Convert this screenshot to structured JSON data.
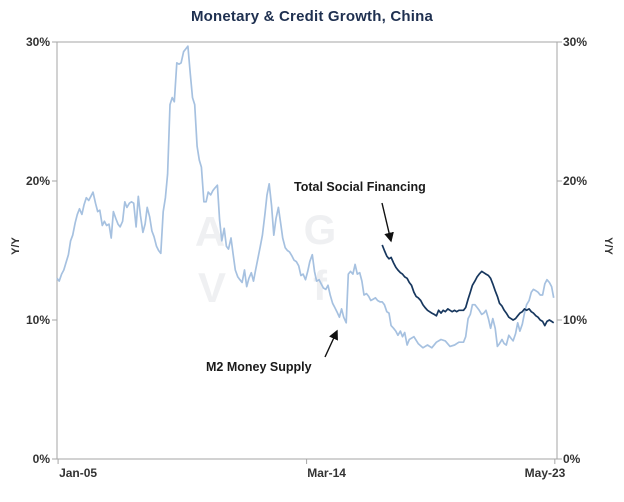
{
  "chart_data": {
    "type": "line",
    "title": "Monetary & Credit Growth, China",
    "ylabel_left": "Y/Y",
    "ylabel_right": "Y/Y",
    "axes": {
      "x_range": [
        2005.0,
        2023.45
      ],
      "y_range": [
        0,
        30
      ],
      "x_ticks": [
        {
          "label": "Jan-05",
          "x": 2005.04
        },
        {
          "label": "Mar-14",
          "x": 2014.21
        },
        {
          "label": "May-23",
          "x": 2023.37
        }
      ],
      "y_ticks": [
        {
          "label": "0%",
          "value": 0
        },
        {
          "label": "10%",
          "value": 10
        },
        {
          "label": "20%",
          "value": 20
        },
        {
          "label": "30%",
          "value": 30
        }
      ],
      "grid": false,
      "legend": "none"
    },
    "series": [
      {
        "name": "M2 Money Supply",
        "color": "#a6c1e0",
        "points": [
          [
            2005.0,
            13.0
          ],
          [
            2005.08,
            12.8
          ],
          [
            2005.17,
            13.3
          ],
          [
            2005.25,
            13.6
          ],
          [
            2005.33,
            14.1
          ],
          [
            2005.42,
            14.7
          ],
          [
            2005.5,
            15.7
          ],
          [
            2005.58,
            16.1
          ],
          [
            2005.67,
            17.0
          ],
          [
            2005.75,
            17.6
          ],
          [
            2005.83,
            18.0
          ],
          [
            2005.92,
            17.6
          ],
          [
            2006.0,
            18.3
          ],
          [
            2006.08,
            18.8
          ],
          [
            2006.17,
            18.6
          ],
          [
            2006.25,
            18.9
          ],
          [
            2006.33,
            19.2
          ],
          [
            2006.42,
            18.4
          ],
          [
            2006.5,
            17.8
          ],
          [
            2006.58,
            17.9
          ],
          [
            2006.67,
            16.8
          ],
          [
            2006.75,
            17.1
          ],
          [
            2006.83,
            16.8
          ],
          [
            2006.92,
            16.9
          ],
          [
            2007.0,
            15.9
          ],
          [
            2007.08,
            17.8
          ],
          [
            2007.17,
            17.3
          ],
          [
            2007.25,
            16.9
          ],
          [
            2007.33,
            16.7
          ],
          [
            2007.42,
            17.1
          ],
          [
            2007.5,
            18.5
          ],
          [
            2007.58,
            18.1
          ],
          [
            2007.67,
            18.4
          ],
          [
            2007.75,
            18.5
          ],
          [
            2007.83,
            18.4
          ],
          [
            2007.92,
            16.7
          ],
          [
            2008.0,
            18.9
          ],
          [
            2008.08,
            17.5
          ],
          [
            2008.17,
            16.3
          ],
          [
            2008.25,
            16.9
          ],
          [
            2008.33,
            18.1
          ],
          [
            2008.42,
            17.4
          ],
          [
            2008.5,
            16.4
          ],
          [
            2008.58,
            16.0
          ],
          [
            2008.67,
            15.3
          ],
          [
            2008.75,
            15.0
          ],
          [
            2008.83,
            14.8
          ],
          [
            2008.92,
            17.8
          ],
          [
            2009.0,
            18.8
          ],
          [
            2009.08,
            20.5
          ],
          [
            2009.17,
            25.5
          ],
          [
            2009.25,
            26.0
          ],
          [
            2009.33,
            25.7
          ],
          [
            2009.42,
            28.5
          ],
          [
            2009.5,
            28.4
          ],
          [
            2009.58,
            28.5
          ],
          [
            2009.67,
            29.3
          ],
          [
            2009.75,
            29.5
          ],
          [
            2009.83,
            29.7
          ],
          [
            2009.92,
            27.7
          ],
          [
            2010.0,
            26.0
          ],
          [
            2010.08,
            25.5
          ],
          [
            2010.17,
            22.5
          ],
          [
            2010.25,
            21.5
          ],
          [
            2010.33,
            21.0
          ],
          [
            2010.42,
            18.5
          ],
          [
            2010.5,
            18.5
          ],
          [
            2010.58,
            19.2
          ],
          [
            2010.67,
            19.0
          ],
          [
            2010.75,
            19.3
          ],
          [
            2010.83,
            19.5
          ],
          [
            2010.92,
            19.7
          ],
          [
            2011.0,
            17.2
          ],
          [
            2011.08,
            15.7
          ],
          [
            2011.17,
            16.6
          ],
          [
            2011.25,
            15.3
          ],
          [
            2011.33,
            15.1
          ],
          [
            2011.42,
            15.9
          ],
          [
            2011.5,
            14.7
          ],
          [
            2011.58,
            13.6
          ],
          [
            2011.67,
            13.1
          ],
          [
            2011.75,
            12.9
          ],
          [
            2011.83,
            12.7
          ],
          [
            2011.92,
            13.6
          ],
          [
            2012.0,
            12.4
          ],
          [
            2012.08,
            13.0
          ],
          [
            2012.17,
            13.4
          ],
          [
            2012.25,
            12.8
          ],
          [
            2012.33,
            13.6
          ],
          [
            2012.42,
            14.5
          ],
          [
            2012.5,
            15.3
          ],
          [
            2012.58,
            16.1
          ],
          [
            2012.67,
            17.6
          ],
          [
            2012.75,
            19.0
          ],
          [
            2012.83,
            19.8
          ],
          [
            2012.92,
            18.2
          ],
          [
            2013.0,
            16.1
          ],
          [
            2013.08,
            17.3
          ],
          [
            2013.17,
            18.1
          ],
          [
            2013.25,
            17.0
          ],
          [
            2013.33,
            15.9
          ],
          [
            2013.42,
            15.2
          ],
          [
            2013.5,
            15.0
          ],
          [
            2013.58,
            14.9
          ],
          [
            2013.67,
            14.6
          ],
          [
            2013.75,
            14.3
          ],
          [
            2013.83,
            14.2
          ],
          [
            2013.92,
            13.9
          ],
          [
            2014.0,
            13.2
          ],
          [
            2014.08,
            13.3
          ],
          [
            2014.17,
            12.9
          ],
          [
            2014.25,
            13.5
          ],
          [
            2014.33,
            14.2
          ],
          [
            2014.42,
            14.7
          ],
          [
            2014.5,
            13.5
          ],
          [
            2014.58,
            12.8
          ],
          [
            2014.67,
            12.9
          ],
          [
            2014.75,
            12.6
          ],
          [
            2014.83,
            12.3
          ],
          [
            2014.92,
            12.2
          ],
          [
            2015.0,
            12.5
          ],
          [
            2015.08,
            11.8
          ],
          [
            2015.17,
            11.2
          ],
          [
            2015.25,
            10.9
          ],
          [
            2015.33,
            10.6
          ],
          [
            2015.42,
            10.2
          ],
          [
            2015.5,
            10.8
          ],
          [
            2015.58,
            10.2
          ],
          [
            2015.67,
            9.8
          ],
          [
            2015.75,
            13.3
          ],
          [
            2015.83,
            13.5
          ],
          [
            2015.92,
            13.3
          ],
          [
            2016.0,
            14.0
          ],
          [
            2016.08,
            13.3
          ],
          [
            2016.17,
            13.4
          ],
          [
            2016.25,
            12.8
          ],
          [
            2016.33,
            11.8
          ],
          [
            2016.42,
            11.9
          ],
          [
            2016.5,
            11.7
          ],
          [
            2016.58,
            11.4
          ],
          [
            2016.67,
            11.5
          ],
          [
            2016.75,
            11.6
          ],
          [
            2016.83,
            11.4
          ],
          [
            2016.92,
            11.3
          ],
          [
            2017.0,
            11.3
          ],
          [
            2017.08,
            11.1
          ],
          [
            2017.17,
            10.6
          ],
          [
            2017.25,
            10.5
          ],
          [
            2017.33,
            9.6
          ],
          [
            2017.42,
            9.4
          ],
          [
            2017.5,
            9.2
          ],
          [
            2017.58,
            8.9
          ],
          [
            2017.67,
            9.2
          ],
          [
            2017.75,
            8.8
          ],
          [
            2017.83,
            9.1
          ],
          [
            2017.92,
            8.2
          ],
          [
            2018.0,
            8.6
          ],
          [
            2018.17,
            8.8
          ],
          [
            2018.33,
            8.3
          ],
          [
            2018.5,
            8.0
          ],
          [
            2018.67,
            8.2
          ],
          [
            2018.83,
            8.0
          ],
          [
            2019.0,
            8.4
          ],
          [
            2019.17,
            8.6
          ],
          [
            2019.33,
            8.5
          ],
          [
            2019.5,
            8.1
          ],
          [
            2019.67,
            8.2
          ],
          [
            2019.83,
            8.4
          ],
          [
            2020.0,
            8.4
          ],
          [
            2020.08,
            8.8
          ],
          [
            2020.17,
            10.1
          ],
          [
            2020.25,
            10.4
          ],
          [
            2020.33,
            11.1
          ],
          [
            2020.42,
            11.1
          ],
          [
            2020.5,
            10.9
          ],
          [
            2020.58,
            10.7
          ],
          [
            2020.67,
            10.4
          ],
          [
            2020.75,
            10.5
          ],
          [
            2020.83,
            10.7
          ],
          [
            2020.92,
            10.1
          ],
          [
            2021.0,
            9.4
          ],
          [
            2021.08,
            10.1
          ],
          [
            2021.17,
            9.4
          ],
          [
            2021.25,
            8.1
          ],
          [
            2021.33,
            8.3
          ],
          [
            2021.42,
            8.6
          ],
          [
            2021.5,
            8.3
          ],
          [
            2021.58,
            8.2
          ],
          [
            2021.67,
            8.9
          ],
          [
            2021.75,
            8.7
          ],
          [
            2021.83,
            8.5
          ],
          [
            2021.92,
            9.0
          ],
          [
            2022.0,
            9.8
          ],
          [
            2022.08,
            9.2
          ],
          [
            2022.17,
            9.7
          ],
          [
            2022.25,
            10.5
          ],
          [
            2022.33,
            11.1
          ],
          [
            2022.42,
            11.4
          ],
          [
            2022.5,
            12.0
          ],
          [
            2022.58,
            12.2
          ],
          [
            2022.67,
            12.1
          ],
          [
            2022.75,
            12.0
          ],
          [
            2022.83,
            11.8
          ],
          [
            2022.92,
            11.8
          ],
          [
            2023.0,
            12.6
          ],
          [
            2023.08,
            12.9
          ],
          [
            2023.17,
            12.7
          ],
          [
            2023.25,
            12.4
          ],
          [
            2023.33,
            11.6
          ]
        ]
      },
      {
        "name": "Total Social Financing",
        "color": "#17375e",
        "points": [
          [
            2017.0,
            15.4
          ],
          [
            2017.08,
            15.0
          ],
          [
            2017.17,
            14.6
          ],
          [
            2017.25,
            14.4
          ],
          [
            2017.33,
            14.5
          ],
          [
            2017.42,
            14.1
          ],
          [
            2017.5,
            13.8
          ],
          [
            2017.58,
            13.6
          ],
          [
            2017.67,
            13.4
          ],
          [
            2017.75,
            13.3
          ],
          [
            2017.83,
            13.1
          ],
          [
            2017.92,
            13.0
          ],
          [
            2018.0,
            12.7
          ],
          [
            2018.08,
            12.5
          ],
          [
            2018.17,
            12.0
          ],
          [
            2018.25,
            11.7
          ],
          [
            2018.33,
            11.6
          ],
          [
            2018.42,
            11.4
          ],
          [
            2018.5,
            11.1
          ],
          [
            2018.58,
            10.9
          ],
          [
            2018.67,
            10.7
          ],
          [
            2018.75,
            10.6
          ],
          [
            2018.83,
            10.5
          ],
          [
            2018.92,
            10.4
          ],
          [
            2019.0,
            10.3
          ],
          [
            2019.08,
            10.7
          ],
          [
            2019.17,
            10.5
          ],
          [
            2019.25,
            10.7
          ],
          [
            2019.33,
            10.6
          ],
          [
            2019.42,
            10.8
          ],
          [
            2019.5,
            10.7
          ],
          [
            2019.58,
            10.6
          ],
          [
            2019.67,
            10.7
          ],
          [
            2019.75,
            10.6
          ],
          [
            2019.83,
            10.7
          ],
          [
            2019.92,
            10.7
          ],
          [
            2020.0,
            10.7
          ],
          [
            2020.08,
            10.9
          ],
          [
            2020.17,
            11.5
          ],
          [
            2020.25,
            12.0
          ],
          [
            2020.33,
            12.5
          ],
          [
            2020.42,
            12.8
          ],
          [
            2020.5,
            13.1
          ],
          [
            2020.58,
            13.3
          ],
          [
            2020.67,
            13.5
          ],
          [
            2020.75,
            13.4
          ],
          [
            2020.83,
            13.3
          ],
          [
            2020.92,
            13.2
          ],
          [
            2021.0,
            13.0
          ],
          [
            2021.08,
            12.6
          ],
          [
            2021.17,
            12.1
          ],
          [
            2021.25,
            11.7
          ],
          [
            2021.33,
            11.2
          ],
          [
            2021.42,
            11.0
          ],
          [
            2021.5,
            10.7
          ],
          [
            2021.58,
            10.5
          ],
          [
            2021.67,
            10.2
          ],
          [
            2021.75,
            10.1
          ],
          [
            2021.83,
            10.0
          ],
          [
            2021.92,
            10.1
          ],
          [
            2022.0,
            10.3
          ],
          [
            2022.08,
            10.5
          ],
          [
            2022.17,
            10.6
          ],
          [
            2022.25,
            10.8
          ],
          [
            2022.33,
            10.7
          ],
          [
            2022.42,
            10.8
          ],
          [
            2022.5,
            10.6
          ],
          [
            2022.58,
            10.5
          ],
          [
            2022.67,
            10.3
          ],
          [
            2022.75,
            10.2
          ],
          [
            2022.83,
            10.0
          ],
          [
            2022.92,
            9.9
          ],
          [
            2023.0,
            9.6
          ],
          [
            2023.08,
            9.9
          ],
          [
            2023.17,
            10.0
          ],
          [
            2023.25,
            9.9
          ],
          [
            2023.33,
            9.8
          ]
        ]
      }
    ],
    "annotations": [
      {
        "text": "Total Social Financing"
      },
      {
        "text": "M2 Money Supply"
      }
    ],
    "watermark": [
      "A",
      "G",
      "V",
      "f"
    ]
  }
}
